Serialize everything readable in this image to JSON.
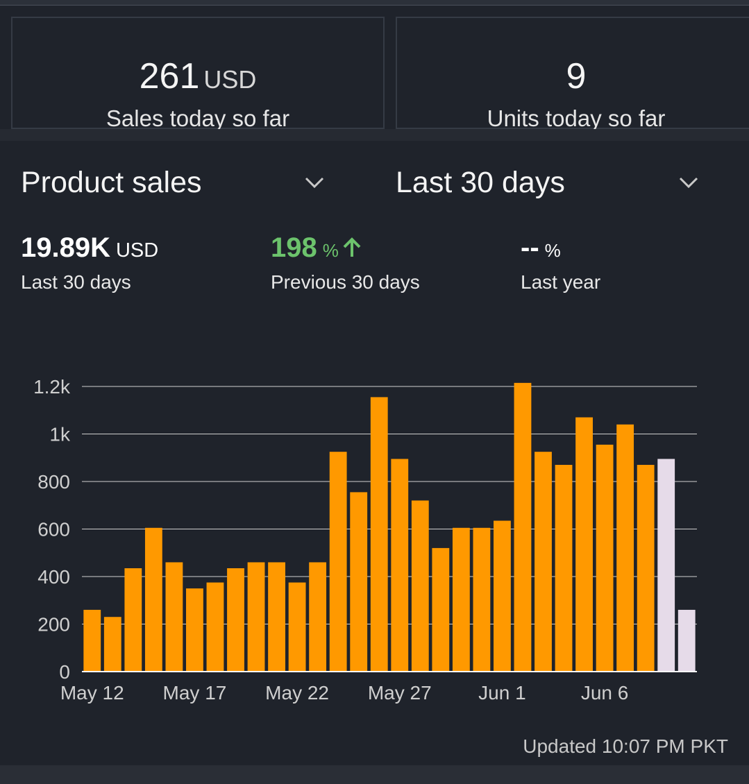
{
  "kpis": [
    {
      "value": "261",
      "unit": "USD",
      "label": "Sales today so far"
    },
    {
      "value": "9",
      "unit": "",
      "label": "Units today so far"
    }
  ],
  "selectors": {
    "metric": "Product sales",
    "range": "Last 30 days"
  },
  "stats": [
    {
      "value": "19.89K",
      "unit": "USD",
      "label": "Last 30 days",
      "color": "#ffffff"
    },
    {
      "value": "198",
      "unit": "%",
      "label": "Previous 30 days",
      "color": "#6cc36c",
      "trend": "up-arrow-icon"
    },
    {
      "value": "--",
      "unit": "%",
      "label": "Last year",
      "color": "#ffffff"
    }
  ],
  "updated": "Updated 10:07 PM PKT",
  "colors": {
    "bar": "#ff9900",
    "bar_projected": "#e6dbe9",
    "background": "#1f232b",
    "positive": "#6cc36c"
  },
  "chart_data": {
    "type": "bar",
    "categories": [
      "May 12",
      "May 13",
      "May 14",
      "May 15",
      "May 16",
      "May 17",
      "May 18",
      "May 19",
      "May 20",
      "May 21",
      "May 22",
      "May 23",
      "May 24",
      "May 25",
      "May 26",
      "May 27",
      "May 28",
      "May 29",
      "May 30",
      "May 31",
      "Jun 1",
      "Jun 2",
      "Jun 3",
      "Jun 4",
      "Jun 5",
      "Jun 6",
      "Jun 7",
      "Jun 8",
      "Jun 9",
      "Jun 10"
    ],
    "values": [
      260,
      230,
      435,
      605,
      460,
      350,
      375,
      435,
      460,
      460,
      375,
      460,
      925,
      755,
      1155,
      895,
      720,
      520,
      605,
      605,
      635,
      1215,
      925,
      870,
      1070,
      955,
      1040,
      870,
      895,
      260
    ],
    "projected": [
      false,
      false,
      false,
      false,
      false,
      false,
      false,
      false,
      false,
      false,
      false,
      false,
      false,
      false,
      false,
      false,
      false,
      false,
      false,
      false,
      false,
      false,
      false,
      false,
      false,
      false,
      false,
      false,
      true,
      true
    ],
    "xtick_labels": [
      "May 12",
      "May 17",
      "May 22",
      "May 27",
      "Jun 1",
      "Jun 6"
    ],
    "xtick_indices": [
      0,
      5,
      10,
      15,
      20,
      25
    ],
    "yticks": [
      0,
      200,
      400,
      600,
      800,
      1000,
      1200
    ],
    "ytick_labels": [
      "0",
      "200",
      "400",
      "600",
      "800",
      "1k",
      "1.2k"
    ],
    "ylim": [
      0,
      1200
    ],
    "grid": true,
    "title": "",
    "xlabel": "",
    "ylabel": ""
  }
}
